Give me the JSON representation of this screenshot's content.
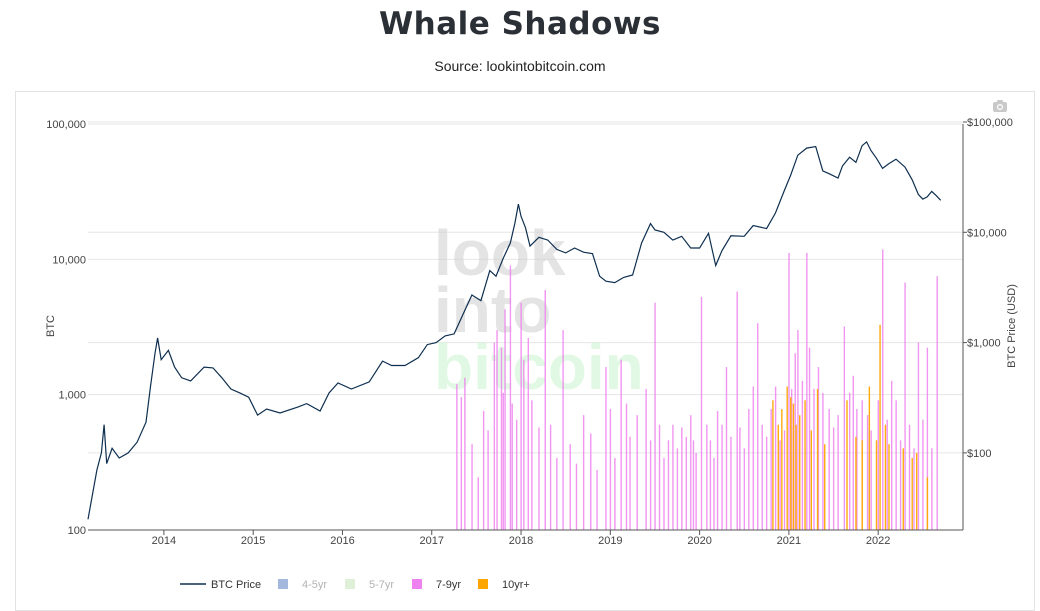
{
  "header": {
    "title": "Whale Shadows",
    "subtitle": "Source: lookintobitcoin.com"
  },
  "watermark": {
    "line1": "look",
    "line2": "into",
    "line3": "bitcoin"
  },
  "colors": {
    "price": "#0e2f4f",
    "band_4_5": "#a4b8dc",
    "band_5_7": "#dff0d8",
    "band_7_9": "#ee82ee",
    "band_10": "#ffa500",
    "grid": "#e6e6e6",
    "axis": "#444444"
  },
  "chart_data": {
    "type": "line+bar",
    "title": "Whale Shadows",
    "ylabel_left": "BTC",
    "ylabel_right": "BTC Price (USD)",
    "x_tick_labels": [
      "2014",
      "2015",
      "2016",
      "2017",
      "2018",
      "2019",
      "2020",
      "2021",
      "2022"
    ],
    "x_range": [
      2013.15,
      2022.95
    ],
    "left_axis": {
      "scale": "log",
      "range": [
        100,
        100000
      ],
      "tick_values": [
        100,
        1000,
        10000,
        100000
      ],
      "tick_labels": [
        "100",
        "1,000",
        "10,000",
        "100,000"
      ]
    },
    "right_axis": {
      "scale": "log",
      "range": [
        20,
        100000
      ],
      "tick_values": [
        100,
        1000,
        10000,
        100000
      ],
      "tick_labels": [
        "$100",
        "$1,000",
        "$10,000",
        "$100,000"
      ]
    },
    "btc_price": {
      "name": "BTC Price",
      "points": [
        [
          2013.15,
          25
        ],
        [
          2013.25,
          70
        ],
        [
          2013.3,
          100
        ],
        [
          2013.33,
          180
        ],
        [
          2013.36,
          80
        ],
        [
          2013.42,
          110
        ],
        [
          2013.5,
          90
        ],
        [
          2013.6,
          100
        ],
        [
          2013.7,
          125
        ],
        [
          2013.8,
          190
        ],
        [
          2013.85,
          400
        ],
        [
          2013.9,
          800
        ],
        [
          2013.93,
          1100
        ],
        [
          2013.97,
          700
        ],
        [
          2014.05,
          850
        ],
        [
          2014.12,
          600
        ],
        [
          2014.2,
          480
        ],
        [
          2014.3,
          450
        ],
        [
          2014.45,
          600
        ],
        [
          2014.55,
          590
        ],
        [
          2014.65,
          480
        ],
        [
          2014.75,
          380
        ],
        [
          2014.85,
          350
        ],
        [
          2014.95,
          320
        ],
        [
          2015.05,
          220
        ],
        [
          2015.15,
          250
        ],
        [
          2015.3,
          230
        ],
        [
          2015.5,
          260
        ],
        [
          2015.6,
          280
        ],
        [
          2015.75,
          240
        ],
        [
          2015.85,
          350
        ],
        [
          2015.95,
          430
        ],
        [
          2016.1,
          380
        ],
        [
          2016.3,
          440
        ],
        [
          2016.45,
          680
        ],
        [
          2016.55,
          620
        ],
        [
          2016.7,
          620
        ],
        [
          2016.85,
          730
        ],
        [
          2016.95,
          960
        ],
        [
          2017.05,
          1000
        ],
        [
          2017.15,
          1150
        ],
        [
          2017.25,
          1200
        ],
        [
          2017.35,
          1800
        ],
        [
          2017.45,
          2700
        ],
        [
          2017.55,
          2400
        ],
        [
          2017.65,
          4500
        ],
        [
          2017.72,
          4000
        ],
        [
          2017.8,
          5800
        ],
        [
          2017.88,
          8000
        ],
        [
          2017.93,
          12000
        ],
        [
          2017.97,
          18000
        ],
        [
          2018.0,
          14000
        ],
        [
          2018.05,
          11000
        ],
        [
          2018.1,
          7500
        ],
        [
          2018.2,
          9000
        ],
        [
          2018.3,
          8500
        ],
        [
          2018.4,
          7000
        ],
        [
          2018.5,
          6500
        ],
        [
          2018.6,
          7200
        ],
        [
          2018.7,
          6600
        ],
        [
          2018.8,
          6400
        ],
        [
          2018.88,
          4000
        ],
        [
          2018.95,
          3600
        ],
        [
          2019.05,
          3500
        ],
        [
          2019.15,
          3900
        ],
        [
          2019.25,
          4100
        ],
        [
          2019.35,
          8000
        ],
        [
          2019.45,
          12000
        ],
        [
          2019.5,
          10500
        ],
        [
          2019.6,
          10000
        ],
        [
          2019.7,
          8500
        ],
        [
          2019.8,
          9200
        ],
        [
          2019.9,
          7200
        ],
        [
          2020.0,
          7200
        ],
        [
          2020.1,
          9800
        ],
        [
          2020.18,
          5000
        ],
        [
          2020.25,
          6800
        ],
        [
          2020.35,
          9300
        ],
        [
          2020.5,
          9200
        ],
        [
          2020.6,
          11500
        ],
        [
          2020.75,
          10800
        ],
        [
          2020.85,
          15000
        ],
        [
          2020.95,
          24000
        ],
        [
          2021.02,
          33000
        ],
        [
          2021.1,
          50000
        ],
        [
          2021.2,
          58000
        ],
        [
          2021.3,
          60000
        ],
        [
          2021.38,
          36000
        ],
        [
          2021.45,
          34000
        ],
        [
          2021.55,
          31000
        ],
        [
          2021.6,
          40000
        ],
        [
          2021.68,
          48000
        ],
        [
          2021.75,
          43000
        ],
        [
          2021.82,
          61000
        ],
        [
          2021.87,
          66000
        ],
        [
          2021.92,
          55000
        ],
        [
          2021.98,
          47000
        ],
        [
          2022.05,
          38000
        ],
        [
          2022.12,
          42000
        ],
        [
          2022.2,
          46000
        ],
        [
          2022.3,
          39000
        ],
        [
          2022.38,
          30000
        ],
        [
          2022.45,
          22000
        ],
        [
          2022.5,
          20000
        ],
        [
          2022.55,
          21000
        ],
        [
          2022.6,
          23500
        ],
        [
          2022.65,
          21500
        ],
        [
          2022.7,
          19500
        ]
      ]
    },
    "legend": [
      {
        "name": "BTC Price",
        "kind": "line",
        "color": "#0e2f4f",
        "active": true
      },
      {
        "name": "4-5yr",
        "kind": "bar",
        "color": "#a4b8dc",
        "active": false
      },
      {
        "name": "5-7yr",
        "kind": "bar",
        "color": "#dff0d8",
        "active": false
      },
      {
        "name": "7-9yr",
        "kind": "bar",
        "color": "#ee82ee",
        "active": true
      },
      {
        "name": "10yr+",
        "kind": "bar",
        "color": "#ffa500",
        "active": true
      }
    ],
    "series": [
      {
        "name": "7-9yr",
        "values": [
          [
            2017.28,
            420
          ],
          [
            2017.33,
            320
          ],
          [
            2017.37,
            480
          ],
          [
            2017.45,
            120
          ],
          [
            2017.52,
            60
          ],
          [
            2017.58,
            240
          ],
          [
            2017.63,
            160
          ],
          [
            2017.7,
            1000
          ],
          [
            2017.73,
            1300
          ],
          [
            2017.78,
            900
          ],
          [
            2017.8,
            350
          ],
          [
            2017.82,
            2000
          ],
          [
            2017.88,
            5000
          ],
          [
            2017.9,
            280
          ],
          [
            2017.95,
            200
          ],
          [
            2018.0,
            2300
          ],
          [
            2018.03,
            700
          ],
          [
            2018.08,
            1100
          ],
          [
            2018.12,
            300
          ],
          [
            2018.2,
            170
          ],
          [
            2018.27,
            3000
          ],
          [
            2018.33,
            180
          ],
          [
            2018.4,
            90
          ],
          [
            2018.47,
            1300
          ],
          [
            2018.55,
            120
          ],
          [
            2018.62,
            80
          ],
          [
            2018.7,
            220
          ],
          [
            2018.78,
            150
          ],
          [
            2018.85,
            70
          ],
          [
            2018.95,
            600
          ],
          [
            2019.0,
            250
          ],
          [
            2019.05,
            90
          ],
          [
            2019.12,
            700
          ],
          [
            2019.18,
            280
          ],
          [
            2019.22,
            140
          ],
          [
            2019.3,
            220
          ],
          [
            2019.4,
            380
          ],
          [
            2019.45,
            130
          ],
          [
            2019.5,
            2300
          ],
          [
            2019.55,
            180
          ],
          [
            2019.6,
            90
          ],
          [
            2019.65,
            130
          ],
          [
            2019.7,
            180
          ],
          [
            2019.75,
            110
          ],
          [
            2019.8,
            170
          ],
          [
            2019.85,
            140
          ],
          [
            2019.9,
            220
          ],
          [
            2019.93,
            130
          ],
          [
            2019.96,
            100
          ],
          [
            2020.02,
            2600
          ],
          [
            2020.08,
            180
          ],
          [
            2020.12,
            130
          ],
          [
            2020.16,
            90
          ],
          [
            2020.2,
            240
          ],
          [
            2020.25,
            180
          ],
          [
            2020.3,
            600
          ],
          [
            2020.35,
            140
          ],
          [
            2020.42,
            2900
          ],
          [
            2020.45,
            170
          ],
          [
            2020.5,
            110
          ],
          [
            2020.55,
            250
          ],
          [
            2020.6,
            400
          ],
          [
            2020.65,
            1500
          ],
          [
            2020.7,
            180
          ],
          [
            2020.75,
            140
          ],
          [
            2020.8,
            250
          ],
          [
            2020.85,
            400
          ],
          [
            2020.9,
            130
          ],
          [
            2020.95,
            160
          ],
          [
            2021.0,
            6500
          ],
          [
            2021.03,
            380
          ],
          [
            2021.07,
            800
          ],
          [
            2021.1,
            1300
          ],
          [
            2021.15,
            450
          ],
          [
            2021.2,
            6500
          ],
          [
            2021.23,
            900
          ],
          [
            2021.28,
            380
          ],
          [
            2021.33,
            600
          ],
          [
            2021.38,
            350
          ],
          [
            2021.45,
            250
          ],
          [
            2021.5,
            170
          ],
          [
            2021.55,
            220
          ],
          [
            2021.62,
            1400
          ],
          [
            2021.68,
            350
          ],
          [
            2021.72,
            500
          ],
          [
            2021.76,
            250
          ],
          [
            2021.82,
            300
          ],
          [
            2021.88,
            220
          ],
          [
            2021.92,
            160
          ],
          [
            2022.0,
            300
          ],
          [
            2022.05,
            7000
          ],
          [
            2022.1,
            200
          ],
          [
            2022.15,
            450
          ],
          [
            2022.2,
            300
          ],
          [
            2022.25,
            130
          ],
          [
            2022.3,
            3500
          ],
          [
            2022.35,
            180
          ],
          [
            2022.4,
            110
          ],
          [
            2022.45,
            1000
          ],
          [
            2022.5,
            200
          ],
          [
            2022.55,
            900
          ],
          [
            2022.6,
            110
          ],
          [
            2022.66,
            4000
          ]
        ]
      },
      {
        "name": "10yr+",
        "values": [
          [
            2020.82,
            300
          ],
          [
            2020.88,
            180
          ],
          [
            2020.92,
            250
          ],
          [
            2020.98,
            400
          ],
          [
            2021.02,
            320
          ],
          [
            2021.05,
            280
          ],
          [
            2021.08,
            180
          ],
          [
            2021.12,
            220
          ],
          [
            2021.18,
            300
          ],
          [
            2021.25,
            160
          ],
          [
            2021.32,
            380
          ],
          [
            2021.4,
            120
          ],
          [
            2021.65,
            300
          ],
          [
            2021.75,
            140
          ],
          [
            2021.82,
            130
          ],
          [
            2021.9,
            400
          ],
          [
            2021.98,
            130
          ],
          [
            2022.02,
            1450
          ],
          [
            2022.08,
            180
          ],
          [
            2022.12,
            120
          ],
          [
            2022.28,
            110
          ],
          [
            2022.38,
            90
          ],
          [
            2022.43,
            100
          ],
          [
            2022.55,
            60
          ]
        ]
      }
    ]
  }
}
